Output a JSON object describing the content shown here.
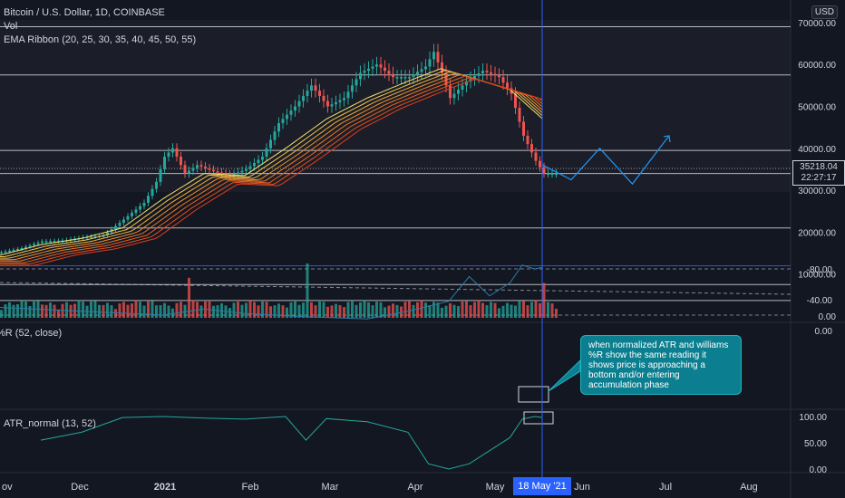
{
  "legend": {
    "symbol": "Bitcoin / U.S. Dollar, 1D, COINBASE",
    "vol": "Vol",
    "ema": "EMA Ribbon (20, 25, 30, 35, 40, 45, 50, 55)",
    "williams": "%R (52, close)",
    "atr": "ATR_normal (13, 52)"
  },
  "currency_button": "USD",
  "last_price": {
    "value": "35218.04",
    "timer": "22:27:17"
  },
  "annotation": "when normalized ATR and williams %R show the same reading it shows price is approaching a bottom and/or entering accumulation phase",
  "cursor_date": "18 May '21",
  "colors": {
    "up": "#26a69a",
    "down": "#ef5350",
    "cursor": "#2962ff",
    "projection": "#2196f3",
    "williams_line": "#2f7ba8",
    "atr_line": "#26a69a",
    "williams_band": "#2a1b45"
  },
  "chart_data": {
    "type": "candlestick",
    "price_axis": {
      "ticks": [
        0,
        10000,
        20000,
        30000,
        40000,
        50000,
        60000,
        70000
      ],
      "tick_labels": [
        "0.00",
        "10000.00",
        "20000.00",
        "30000.00",
        "40000.00",
        "50000.00",
        "60000.00",
        "70000.00"
      ]
    },
    "horizontal_levels": [
      69000,
      57500,
      39500,
      34000,
      21000,
      12000,
      7500,
      3700
    ],
    "price_path": [
      [
        0,
        15200
      ],
      [
        5,
        16200
      ],
      [
        10,
        17800
      ],
      [
        15,
        18000
      ],
      [
        20,
        18800
      ],
      [
        25,
        19200
      ],
      [
        30,
        23000
      ],
      [
        35,
        27000
      ],
      [
        38,
        32000
      ],
      [
        40,
        38000
      ],
      [
        42,
        40000
      ],
      [
        45,
        34000
      ],
      [
        48,
        36000
      ],
      [
        52,
        34500
      ],
      [
        56,
        33500
      ],
      [
        60,
        35000
      ],
      [
        64,
        38000
      ],
      [
        68,
        46000
      ],
      [
        72,
        50000
      ],
      [
        76,
        55000
      ],
      [
        80,
        50000
      ],
      [
        84,
        52000
      ],
      [
        88,
        58000
      ],
      [
        92,
        60000
      ],
      [
        96,
        57000
      ],
      [
        100,
        57000
      ],
      [
        104,
        59500
      ],
      [
        106,
        63000
      ],
      [
        108,
        58000
      ],
      [
        110,
        52000
      ],
      [
        114,
        56000
      ],
      [
        118,
        58500
      ],
      [
        122,
        57000
      ],
      [
        125,
        53000
      ],
      [
        128,
        43000
      ],
      [
        131,
        37000
      ],
      [
        133,
        34000
      ]
    ],
    "ema_ribbon_path": [
      [
        0,
        14500
      ],
      [
        10,
        17000
      ],
      [
        20,
        18500
      ],
      [
        30,
        21000
      ],
      [
        40,
        28000
      ],
      [
        50,
        34000
      ],
      [
        60,
        33500
      ],
      [
        70,
        40000
      ],
      [
        80,
        47000
      ],
      [
        90,
        52000
      ],
      [
        100,
        56000
      ],
      [
        108,
        59000
      ],
      [
        115,
        57000
      ],
      [
        125,
        54000
      ],
      [
        133,
        47000
      ]
    ],
    "volume_highs": [
      9200,
      12500,
      8000
    ],
    "projection_path": [
      [
        133,
        36000
      ],
      [
        140,
        32500
      ],
      [
        147,
        40000
      ],
      [
        155,
        31500
      ],
      [
        164,
        43000
      ]
    ],
    "time_labels": [
      "ov",
      "Dec",
      "2021",
      "Feb",
      "Mar",
      "Apr",
      "May",
      "Jun",
      "Jul",
      "Aug"
    ],
    "williams_r": {
      "ylim": [
        -100,
        0
      ],
      "ticks": [
        "0.00",
        "-40.00",
        "-80.00"
      ],
      "band": [
        -80,
        -20
      ],
      "path": [
        [
          0,
          -30
        ],
        [
          20,
          -25
        ],
        [
          40,
          -20
        ],
        [
          50,
          -28
        ],
        [
          60,
          -22
        ],
        [
          75,
          -18
        ],
        [
          90,
          -15
        ],
        [
          100,
          -25
        ],
        [
          110,
          -38
        ],
        [
          115,
          -70
        ],
        [
          120,
          -45
        ],
        [
          125,
          -62
        ],
        [
          128,
          -85
        ],
        [
          131,
          -80
        ],
        [
          133,
          -82
        ]
      ]
    },
    "atr_normal": {
      "ylim": [
        0,
        100
      ],
      "ticks": [
        "100.00",
        "50.00",
        "0.00"
      ],
      "path": [
        [
          10,
          55
        ],
        [
          20,
          70
        ],
        [
          30,
          98
        ],
        [
          40,
          100
        ],
        [
          50,
          97
        ],
        [
          60,
          95
        ],
        [
          70,
          100
        ],
        [
          75,
          55
        ],
        [
          80,
          96
        ],
        [
          90,
          90
        ],
        [
          100,
          70
        ],
        [
          105,
          10
        ],
        [
          110,
          0
        ],
        [
          115,
          10
        ],
        [
          120,
          35
        ],
        [
          125,
          60
        ],
        [
          128,
          95
        ],
        [
          131,
          100
        ],
        [
          133,
          98
        ]
      ]
    }
  }
}
